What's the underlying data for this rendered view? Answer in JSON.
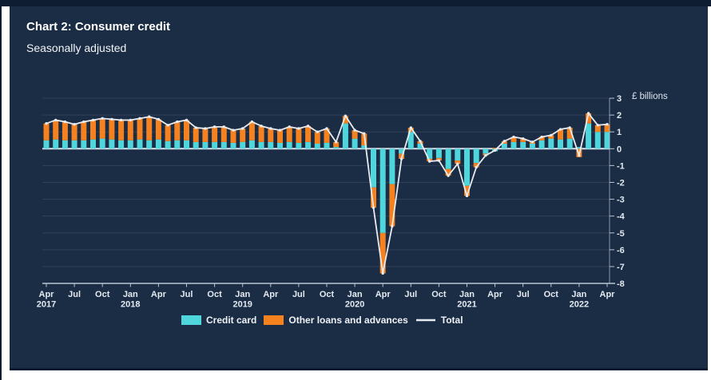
{
  "page": {
    "title": "Chart 2: Consumer credit",
    "subtitle": "Seasonally adjusted"
  },
  "colors": {
    "panel_background": "#1b2c45",
    "top_strip": "#0e1d31",
    "credit_card": "#4fd5dc",
    "other_loans": "#f5821f",
    "total_line": "#e8ecf1",
    "zero_line": "#d9e0e8",
    "axis": "#bac5d1",
    "tick_text": "#e3eaf1"
  },
  "chart_data": {
    "type": "bar",
    "subtype": "stacked-bars-with-line",
    "title": "Chart 2: Consumer credit",
    "subtitle": "Seasonally adjusted",
    "ylabel": "£ billions",
    "xlabel": "",
    "ylim": [
      -8,
      3
    ],
    "grid": true,
    "legend_position": "bottom",
    "y_ticks": [
      3,
      2,
      1,
      0,
      -1,
      -2,
      -3,
      -4,
      -5,
      -6,
      -7,
      -8
    ],
    "x_ticks": [
      {
        "index": 0,
        "month": "Apr",
        "year": "2017"
      },
      {
        "index": 3,
        "month": "Jul"
      },
      {
        "index": 6,
        "month": "Oct"
      },
      {
        "index": 9,
        "month": "Jan",
        "year": "2018"
      },
      {
        "index": 12,
        "month": "Apr"
      },
      {
        "index": 15,
        "month": "Jul"
      },
      {
        "index": 18,
        "month": "Oct"
      },
      {
        "index": 21,
        "month": "Jan",
        "year": "2019"
      },
      {
        "index": 24,
        "month": "Apr"
      },
      {
        "index": 27,
        "month": "Jul"
      },
      {
        "index": 30,
        "month": "Oct"
      },
      {
        "index": 33,
        "month": "Jan",
        "year": "2020"
      },
      {
        "index": 36,
        "month": "Apr"
      },
      {
        "index": 39,
        "month": "Jul"
      },
      {
        "index": 42,
        "month": "Oct"
      },
      {
        "index": 45,
        "month": "Jan",
        "year": "2021"
      },
      {
        "index": 48,
        "month": "Apr"
      },
      {
        "index": 51,
        "month": "Jul"
      },
      {
        "index": 54,
        "month": "Oct"
      },
      {
        "index": 57,
        "month": "Jan",
        "year": "2022"
      },
      {
        "index": 60,
        "month": "Apr"
      }
    ],
    "months": [
      "Apr 2017",
      "May 2017",
      "Jun 2017",
      "Jul 2017",
      "Aug 2017",
      "Sep 2017",
      "Oct 2017",
      "Nov 2017",
      "Dec 2017",
      "Jan 2018",
      "Feb 2018",
      "Mar 2018",
      "Apr 2018",
      "May 2018",
      "Jun 2018",
      "Jul 2018",
      "Aug 2018",
      "Sep 2018",
      "Oct 2018",
      "Nov 2018",
      "Dec 2018",
      "Jan 2019",
      "Feb 2019",
      "Mar 2019",
      "Apr 2019",
      "May 2019",
      "Jun 2019",
      "Jul 2019",
      "Aug 2019",
      "Sep 2019",
      "Oct 2019",
      "Nov 2019",
      "Dec 2019",
      "Jan 2020",
      "Feb 2020",
      "Mar 2020",
      "Apr 2020",
      "May 2020",
      "Jun 2020",
      "Jul 2020",
      "Aug 2020",
      "Sep 2020",
      "Oct 2020",
      "Nov 2020",
      "Dec 2020",
      "Jan 2021",
      "Feb 2021",
      "Mar 2021",
      "Apr 2021",
      "May 2021",
      "Jun 2021",
      "Jul 2021",
      "Aug 2021",
      "Sep 2021",
      "Oct 2021",
      "Nov 2021",
      "Dec 2021",
      "Jan 2022",
      "Feb 2022",
      "Mar 2022",
      "Apr 2022"
    ],
    "series": [
      {
        "name": "Credit card",
        "kind": "bar",
        "color": "#4fd5dc",
        "values": [
          0.5,
          0.55,
          0.5,
          0.5,
          0.5,
          0.55,
          0.6,
          0.55,
          0.5,
          0.5,
          0.55,
          0.5,
          0.55,
          0.45,
          0.5,
          0.5,
          0.4,
          0.4,
          0.4,
          0.4,
          0.35,
          0.4,
          0.5,
          0.4,
          0.4,
          0.35,
          0.4,
          0.35,
          0.4,
          0.3,
          0.35,
          0.1,
          1.5,
          0.6,
          0.2,
          -2.3,
          -5.0,
          -2.1,
          -0.3,
          1.0,
          0.3,
          -0.6,
          -0.55,
          -1.2,
          -0.7,
          -2.2,
          -0.85,
          -0.3,
          -0.15,
          0.3,
          0.4,
          0.4,
          0.3,
          0.5,
          0.6,
          0.55,
          0.6,
          0.1,
          1.5,
          1.0,
          1.0
        ]
      },
      {
        "name": "Other loans and advances",
        "kind": "bar",
        "color": "#f5821f",
        "values": [
          1.0,
          1.15,
          1.1,
          0.95,
          1.1,
          1.15,
          1.2,
          1.2,
          1.2,
          1.2,
          1.25,
          1.4,
          1.2,
          0.95,
          1.1,
          1.2,
          0.85,
          0.8,
          0.9,
          0.9,
          0.75,
          0.8,
          1.1,
          0.95,
          0.8,
          0.75,
          0.9,
          0.85,
          0.95,
          0.7,
          0.85,
          0.3,
          0.45,
          0.5,
          0.7,
          -1.2,
          -2.4,
          -2.5,
          -0.3,
          0.25,
          0.15,
          -0.15,
          -0.15,
          -0.4,
          -0.2,
          -0.6,
          -0.25,
          -0.1,
          0.05,
          0.15,
          0.3,
          0.2,
          0.1,
          0.2,
          0.2,
          0.6,
          0.65,
          -0.5,
          0.6,
          0.4,
          0.45
        ]
      },
      {
        "name": "Total",
        "kind": "line",
        "color": "#e8ecf1",
        "values": [
          1.5,
          1.7,
          1.6,
          1.45,
          1.6,
          1.7,
          1.8,
          1.75,
          1.7,
          1.7,
          1.8,
          1.9,
          1.75,
          1.4,
          1.6,
          1.7,
          1.25,
          1.2,
          1.3,
          1.3,
          1.1,
          1.2,
          1.6,
          1.35,
          1.2,
          1.1,
          1.3,
          1.2,
          1.35,
          1.0,
          1.2,
          0.4,
          1.95,
          1.1,
          0.9,
          -3.5,
          -7.4,
          -4.6,
          -0.6,
          1.25,
          0.45,
          -0.75,
          -0.7,
          -1.6,
          -0.9,
          -2.8,
          -1.1,
          -0.4,
          -0.1,
          0.45,
          0.7,
          0.6,
          0.4,
          0.7,
          0.8,
          1.15,
          1.25,
          -0.4,
          2.1,
          1.4,
          1.45
        ]
      }
    ]
  }
}
